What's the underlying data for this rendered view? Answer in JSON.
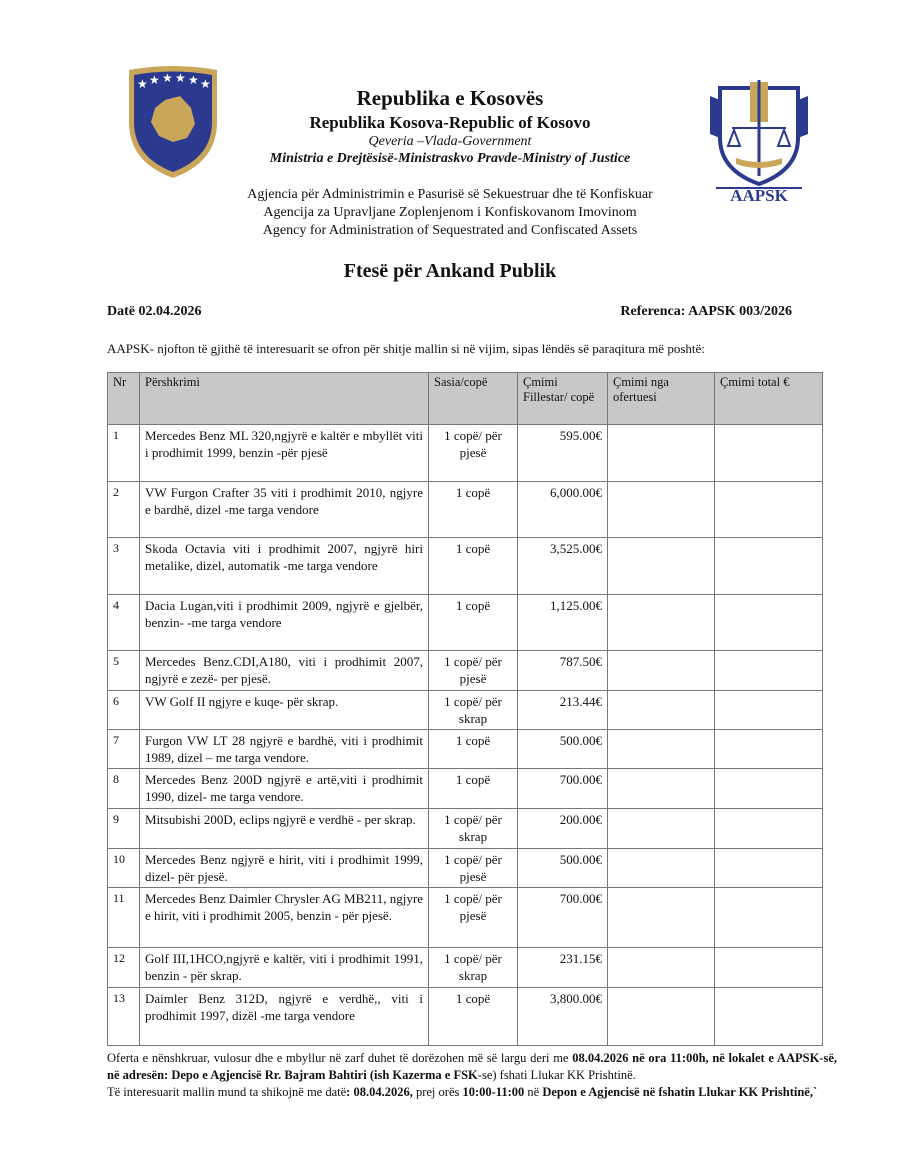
{
  "header": {
    "line1": "Republika e Kosovës",
    "line2": "Republika Kosova-Republic of Kosovo",
    "line3": "Qeveria –Vlada-Government",
    "line4": "Ministria e Drejtësisë-Ministraskvo Pravde-Ministry of Justice",
    "agency_sq": "Agjencia për Administrimin e Pasurisë së Sekuestruar dhe të Konfiskuar",
    "agency_sr": "Agencija za Upravljane Zoplenjenom i Konfiskovanom Imovinom",
    "agency_en": "Agency for Administration of Sequestrated and Confiscated Assets",
    "logo_right_text": "AAPSK",
    "colors": {
      "navy": "#2b3a8f",
      "gold": "#c9a65a"
    }
  },
  "title": "Ftesë për Ankand Publik",
  "date": "Datë 02.04.2026",
  "reference": "Referenca: AAPSK 003/2026",
  "intro": "AAPSK- njofton të gjithë të interesuarit se ofron për shitje mallin si në vijim, sipas lëndës së paraqitura më poshtë:",
  "table": {
    "headers": [
      "Nr",
      "Përshkrimi",
      "Sasia/copë",
      "Çmimi Fillestar/ copë",
      "Çmimi nga ofertuesi",
      "Çmimi total €"
    ],
    "rows": [
      {
        "nr": "1",
        "desc": "Mercedes Benz ML 320,ngjyrë e kaltër e mbyllët viti i prodhimit 1999, benzin -për pjesë",
        "qty": "1 copë/ për pjesë",
        "price": "595.00€"
      },
      {
        "nr": "2",
        "desc": "VW Furgon Crafter 35 viti i prodhimit 2010, ngjyre e bardhë, dizel -me targa vendore",
        "qty": "1 copë",
        "price": "6,000.00€"
      },
      {
        "nr": "3",
        "desc": "Skoda Octavia viti i prodhimit 2007, ngjyrë hiri metalike, dizel, automatik -me targa vendore",
        "qty": "1 copë",
        "price": "3,525.00€"
      },
      {
        "nr": "4",
        "desc": "Dacia Lugan,viti i prodhimit 2009, ngjyrë e gjelbër, benzin- -me targa vendore",
        "qty": "1 copë",
        "price": "1,125.00€"
      },
      {
        "nr": "5",
        "desc": "Mercedes Benz.CDI,A180, viti i prodhimit 2007, ngjyrë e zezë- per pjesë.",
        "qty": "1 copë/ për pjesë",
        "price": "787.50€"
      },
      {
        "nr": "6",
        "desc": "VW Golf II ngjyre e kuqe- për skrap.",
        "qty": "1 copë/ për skrap",
        "price": "213.44€"
      },
      {
        "nr": "7",
        "desc": "Furgon VW LT 28 ngjyrë e bardhë, viti i prodhimit 1989, dizel – me targa vendore.",
        "qty": "1 copë",
        "price": "500.00€"
      },
      {
        "nr": "8",
        "desc": "Mercedes Benz 200D ngjyrë e artë,viti i prodhimit 1990, dizel- me targa vendore.",
        "qty": "1 copë",
        "price": "700.00€"
      },
      {
        "nr": "9",
        "desc": "Mitsubishi 200D, eclips ngjyrë e verdhë - per skrap.",
        "qty": "1 copë/ për skrap",
        "price": "200.00€"
      },
      {
        "nr": "10",
        "desc": "Mercedes Benz ngjyrë e hirit, viti i prodhimit 1999, dizel- për pjesë.",
        "qty": "1 copë/ për pjesë",
        "price": "500.00€"
      },
      {
        "nr": "11",
        "desc": "Mercedes Benz Daimler Chrysler AG MB211, ngjyre e hirit, viti i prodhimit 2005, benzin - për pjesë.",
        "qty": "1 copë/ për pjesë",
        "price": "700.00€"
      },
      {
        "nr": "12",
        "desc": "Golf III,1HCO,ngjyrë e kaltër, viti i prodhimit 1991, benzin - për skrap.",
        "qty": "1 copë/ për skrap",
        "price": "231.15€"
      },
      {
        "nr": "13",
        "desc": "Daimler Benz 312D, ngjyrë e verdhë,, viti i prodhimit 1997, dizël -me targa vendore",
        "qty": "1 copë",
        "price": "3,800.00€"
      }
    ]
  },
  "footer": {
    "p1": [
      {
        "t": "Oferta e nënshkruar, vulosur dhe e mbyllur në zarf duhet të dorëzohen më së largu deri me ",
        "b": false
      },
      {
        "t": "08.04.2026  në ora 11:00h, në lokalet e AAPSK-së, në adresën: Depo e Agjencisë Rr. Bajram Bahtiri (ish Kazerma e FSK",
        "b": true
      },
      {
        "t": "-se) fshati Llukar KK Prishtinë.",
        "b": false
      }
    ],
    "p2": [
      {
        "t": "Të interesuarit mallin mund ta shikojnë me datë",
        "b": false
      },
      {
        "t": ": 08.04.2026,",
        "b": true
      },
      {
        "t": " prej orës ",
        "b": false
      },
      {
        "t": "10:00-11:00",
        "b": true
      },
      {
        "t": " në ",
        "b": false
      },
      {
        "t": "Depon e Agjencisë në fshatin Llukar KK Prishtinë,`",
        "b": true
      }
    ]
  }
}
